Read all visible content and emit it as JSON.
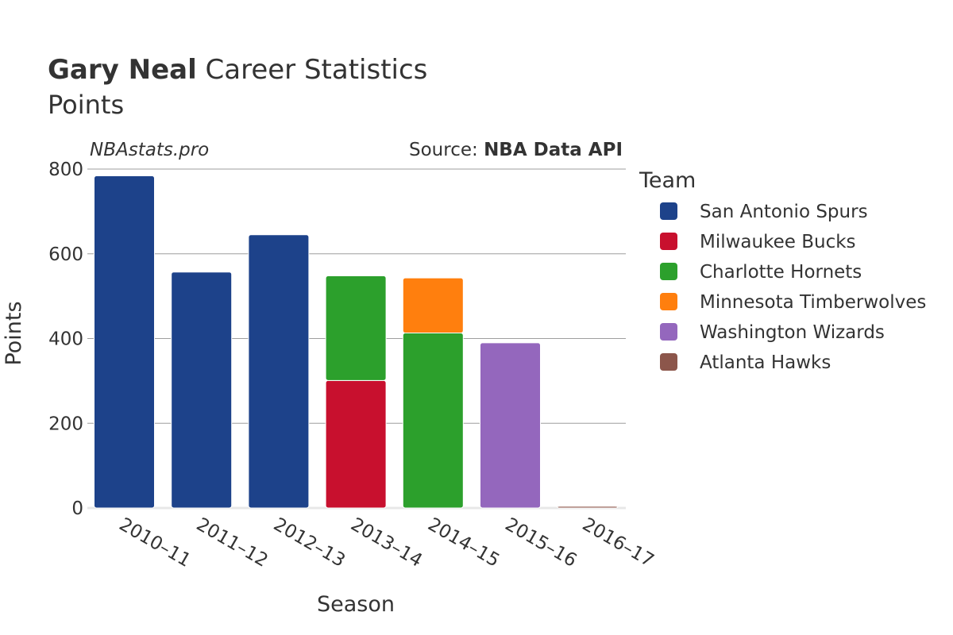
{
  "header": {
    "title_bold": "Gary Neal",
    "title_rest": " Career Statistics",
    "subtitle": "Points",
    "watermark": "NBAstats.pro",
    "source_prefix": "Source: ",
    "source_name": "NBA Data API"
  },
  "chart_data": {
    "type": "bar",
    "stacked": true,
    "xlabel": "Season",
    "ylabel": "Points",
    "ylim": [
      0,
      800
    ],
    "yticks": [
      0,
      200,
      400,
      600,
      800
    ],
    "grid": true,
    "legend_title": "Team",
    "legend_position": "right",
    "categories": [
      "2010–11",
      "2011–12",
      "2012–13",
      "2013–14",
      "2014–15",
      "2015–16",
      "2016–17"
    ],
    "series": [
      {
        "name": "San Antonio Spurs",
        "color": "#1d428a",
        "values": [
          784,
          557,
          645,
          0,
          0,
          0,
          0
        ]
      },
      {
        "name": "Milwaukee Bucks",
        "color": "#c8102e",
        "values": [
          0,
          0,
          0,
          301,
          0,
          0,
          0
        ]
      },
      {
        "name": "Charlotte Hornets",
        "color": "#2ca02c",
        "values": [
          0,
          0,
          0,
          247,
          413,
          0,
          0
        ]
      },
      {
        "name": "Minnesota Timberwolves",
        "color": "#ff7f0e",
        "values": [
          0,
          0,
          0,
          0,
          130,
          0,
          0
        ]
      },
      {
        "name": "Washington Wizards",
        "color": "#9467bd",
        "values": [
          0,
          0,
          0,
          0,
          0,
          390,
          0
        ]
      },
      {
        "name": "Atlanta Hawks",
        "color": "#8c564b",
        "values": [
          0,
          0,
          0,
          0,
          0,
          0,
          4
        ]
      }
    ]
  }
}
